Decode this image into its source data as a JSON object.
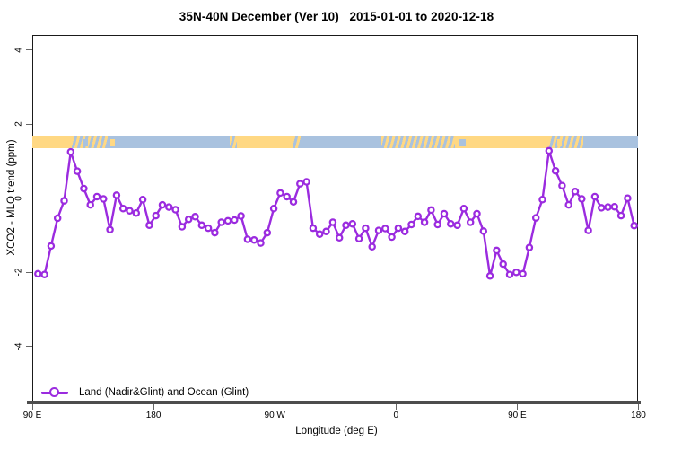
{
  "title": "35N-40N December (Ver 10)   2015-01-01 to 2020-12-18",
  "chart_data": {
    "type": "line",
    "title": "35N-40N December (Ver 10)   2015-01-01 to 2020-12-18",
    "xlabel": "Longitude (deg E)",
    "ylabel": "XCO2 - MLO trend (ppm)",
    "ylim": [
      -5,
      4.4
    ],
    "yticks": [
      {
        "value": 4,
        "label": "4"
      },
      {
        "value": 2,
        "label": "2"
      },
      {
        "value": 0,
        "label": "0"
      },
      {
        "value": -2,
        "label": "-2"
      },
      {
        "value": -4,
        "label": "-4"
      }
    ],
    "xticks": [
      {
        "deg": 90,
        "label": "90 E"
      },
      {
        "deg": 180,
        "label": "180"
      },
      {
        "deg": 270,
        "label": "90 W"
      },
      {
        "deg": 360,
        "label": "0"
      },
      {
        "deg": 450,
        "label": "90 E"
      },
      {
        "deg": 540,
        "label": "180"
      }
    ],
    "grid": false,
    "legend_position": "bottom-left-inside",
    "legend": [
      {
        "label": "Land (Nadir&Glint) and Ocean (Glint)",
        "color": "#9B2BDF",
        "marker": "open-circle"
      }
    ],
    "colors": {
      "series": "#9B2BDF",
      "marker_fill": "#ffffff",
      "band_land": "#FFD883",
      "band_ocean": "#A9C2DF",
      "axis_line": "#4d4d4d",
      "tick": "#666666"
    },
    "series": [
      {
        "name": "Land (Nadir&Glint) and Ocean (Glint)",
        "x_start_deg": 94.2,
        "x_end_deg": 536.8,
        "values": [
          -2.04,
          -2.06,
          -1.29,
          -0.54,
          -0.07,
          1.25,
          0.73,
          0.26,
          -0.18,
          0.04,
          -0.02,
          -0.85,
          0.08,
          -0.28,
          -0.34,
          -0.4,
          -0.04,
          -0.73,
          -0.47,
          -0.18,
          -0.24,
          -0.31,
          -0.77,
          -0.57,
          -0.5,
          -0.73,
          -0.81,
          -0.93,
          -0.65,
          -0.61,
          -0.59,
          -0.48,
          -1.11,
          -1.13,
          -1.21,
          -0.93,
          -0.28,
          0.14,
          0.04,
          -0.1,
          0.39,
          0.44,
          -0.81,
          -0.97,
          -0.9,
          -0.65,
          -1.07,
          -0.73,
          -0.69,
          -1.09,
          -0.81,
          -1.31,
          -0.87,
          -0.82,
          -1.05,
          -0.81,
          -0.9,
          -0.71,
          -0.49,
          -0.65,
          -0.32,
          -0.71,
          -0.42,
          -0.69,
          -0.73,
          -0.28,
          -0.65,
          -0.42,
          -0.89,
          -2.1,
          -1.41,
          -1.78,
          -2.06,
          -2.0,
          -2.04,
          -1.33,
          -0.53,
          -0.04,
          1.28,
          0.74,
          0.34,
          -0.18,
          0.18,
          -0.02,
          -0.87,
          0.04,
          -0.26,
          -0.24,
          -0.23,
          -0.47,
          0.0,
          -0.74
        ]
      }
    ],
    "surface_band": {
      "description_top_value": 1.66,
      "description_bottom_value": 1.35,
      "segments": [
        {
          "from": 90,
          "to": 119,
          "type": "land"
        },
        {
          "from": 119,
          "to": 146,
          "type": "coast"
        },
        {
          "from": 146,
          "to": 236.5,
          "type": "ocean"
        },
        {
          "from": 236.5,
          "to": 242,
          "type": "coast"
        },
        {
          "from": 242,
          "to": 283.5,
          "type": "land"
        },
        {
          "from": 283.5,
          "to": 289,
          "type": "coast"
        },
        {
          "from": 289,
          "to": 349,
          "type": "ocean"
        },
        {
          "from": 349,
          "to": 404,
          "type": "coast"
        },
        {
          "from": 404,
          "to": 474,
          "type": "land"
        },
        {
          "from": 474,
          "to": 499,
          "type": "coast"
        },
        {
          "from": 499,
          "to": 540,
          "type": "ocean"
        }
      ],
      "patches": [
        {
          "from": 406.5,
          "to": 411.5,
          "type": "ocean"
        },
        {
          "from": 148,
          "to": 151,
          "type": "land"
        },
        {
          "from": 128,
          "to": 131,
          "type": "ocean"
        },
        {
          "from": 480,
          "to": 483,
          "type": "land"
        }
      ]
    }
  }
}
